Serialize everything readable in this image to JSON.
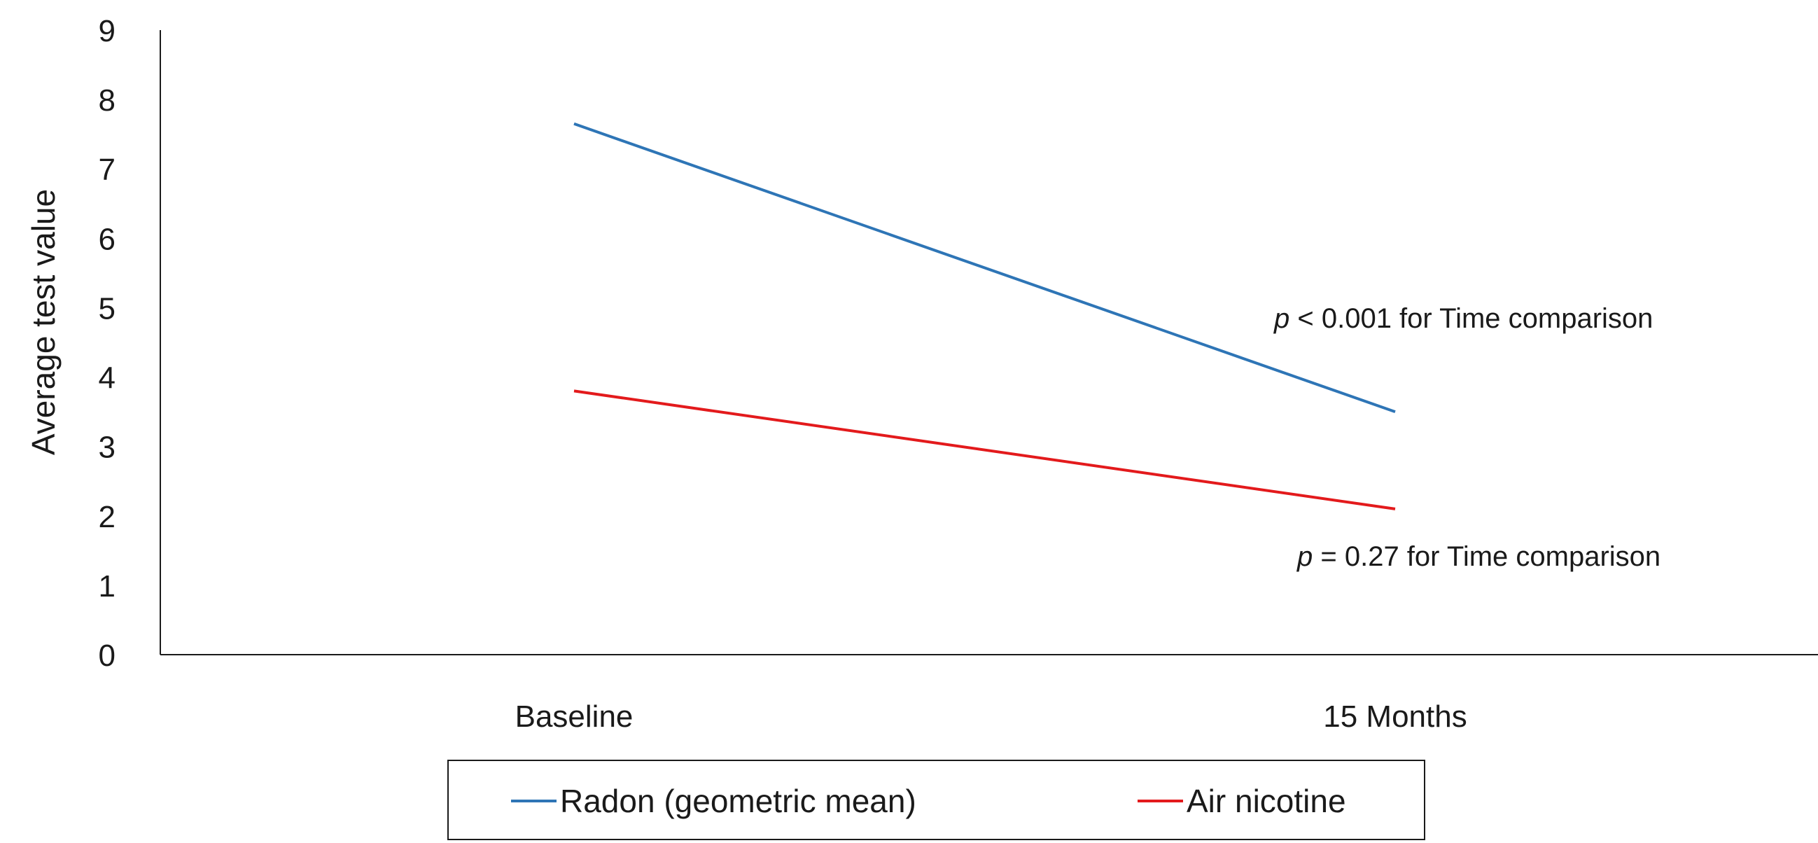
{
  "chart_data": {
    "type": "line",
    "categories": [
      "Baseline",
      "15 Months"
    ],
    "ylabel": "Average test value",
    "ylim": [
      0,
      9
    ],
    "yticks": [
      "0",
      "1",
      "2",
      "3",
      "4",
      "5",
      "6",
      "7",
      "8",
      "9"
    ],
    "grid": false,
    "legend_position": "bottom",
    "series": [
      {
        "name": "Radon (geometric mean)",
        "color": "#2E75B6",
        "values": [
          7.65,
          3.5
        ]
      },
      {
        "name": "Air nicotine",
        "color": "#E31A1C",
        "values": [
          3.8,
          2.1
        ]
      }
    ],
    "annotations": [
      {
        "italic": "p",
        "text": " < 0.001 for Time comparison"
      },
      {
        "italic": "p",
        "text": " = 0.27 for Time comparison"
      }
    ]
  }
}
